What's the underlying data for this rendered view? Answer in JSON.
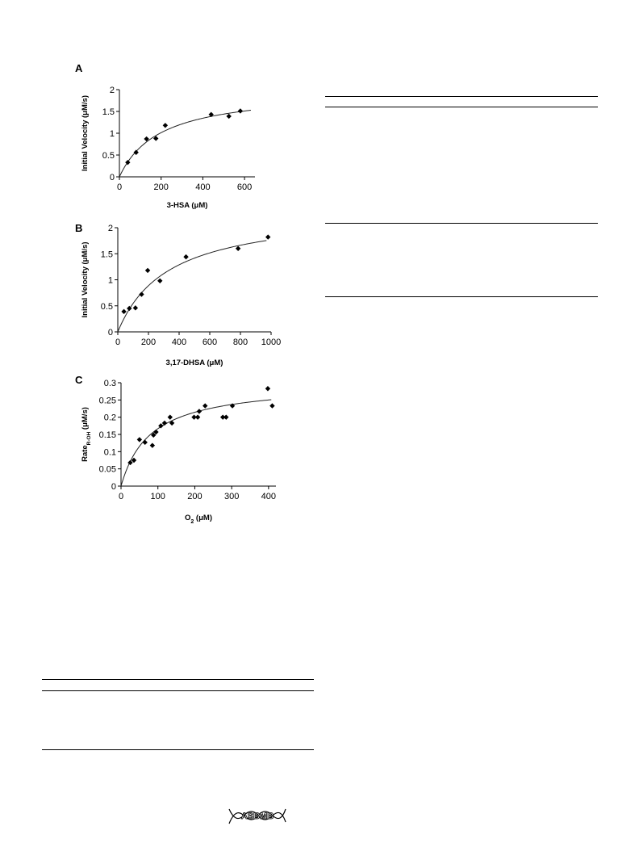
{
  "chart_data": [
    {
      "type": "scatter",
      "panel": "A",
      "xlabel": "3-HSA (μM)",
      "ylabel": "Initial Velocity (μM/s)",
      "xlim": [
        0,
        650
      ],
      "ylim": [
        0,
        2
      ],
      "xticks": [
        0,
        200,
        400,
        600
      ],
      "yticks": [
        0,
        0.5,
        1,
        1.5,
        2
      ],
      "tick_labels_x": [
        "0",
        "200",
        "400",
        "600"
      ],
      "tick_labels_y": [
        "0",
        "0.5",
        "1",
        "1.5",
        "2"
      ],
      "points": [
        [
          40,
          0.33
        ],
        [
          80,
          0.56
        ],
        [
          130,
          0.87
        ],
        [
          175,
          0.88
        ],
        [
          220,
          1.18
        ],
        [
          440,
          1.43
        ],
        [
          525,
          1.39
        ],
        [
          580,
          1.51
        ]
      ],
      "fit": {
        "type": "michaelis-menten",
        "vmax": 2.0,
        "km": 195
      },
      "grid": false,
      "legend": "none"
    },
    {
      "type": "scatter",
      "panel": "B",
      "xlabel": "3,17-DHSA (μM)",
      "ylabel": "Initial Velocity (μM/s)",
      "xlim": [
        0,
        1000
      ],
      "ylim": [
        0,
        2
      ],
      "xticks": [
        0,
        200,
        400,
        600,
        800,
        1000
      ],
      "yticks": [
        0,
        0.5,
        1,
        1.5,
        2
      ],
      "tick_labels_x": [
        "0",
        "200",
        "400",
        "600",
        "800",
        "1000"
      ],
      "tick_labels_y": [
        "0",
        "0.5",
        "1",
        "1.5",
        "2"
      ],
      "points": [
        [
          40,
          0.39
        ],
        [
          75,
          0.45
        ],
        [
          115,
          0.46
        ],
        [
          155,
          0.72
        ],
        [
          195,
          1.18
        ],
        [
          275,
          0.98
        ],
        [
          445,
          1.44
        ],
        [
          785,
          1.6
        ],
        [
          980,
          1.82
        ]
      ],
      "fit": {
        "type": "michaelis-menten",
        "vmax": 2.35,
        "km": 330
      },
      "grid": false,
      "legend": "none"
    },
    {
      "type": "scatter",
      "panel": "C",
      "xlabel": "O2 (μM)",
      "ylabel": "Rate R-OH (μM/s)",
      "xlim": [
        0,
        420
      ],
      "ylim": [
        0,
        0.3
      ],
      "xticks": [
        0,
        100,
        200,
        300,
        400
      ],
      "yticks": [
        0,
        0.05,
        0.1,
        0.15,
        0.2,
        0.25,
        0.3
      ],
      "tick_labels_x": [
        "0",
        "100",
        "200",
        "300",
        "400"
      ],
      "tick_labels_y": [
        "0",
        "0.05",
        "0.1",
        "0.15",
        "0.2",
        "0.25",
        "0.3"
      ],
      "points": [
        [
          25,
          0.068
        ],
        [
          35,
          0.075
        ],
        [
          50,
          0.135
        ],
        [
          65,
          0.127
        ],
        [
          85,
          0.118
        ],
        [
          88,
          0.148
        ],
        [
          95,
          0.157
        ],
        [
          108,
          0.175
        ],
        [
          118,
          0.183
        ],
        [
          133,
          0.2
        ],
        [
          138,
          0.183
        ],
        [
          198,
          0.2
        ],
        [
          208,
          0.2
        ],
        [
          212,
          0.217
        ],
        [
          228,
          0.233
        ],
        [
          276,
          0.2
        ],
        [
          285,
          0.2
        ],
        [
          302,
          0.233
        ],
        [
          398,
          0.283
        ],
        [
          410,
          0.233
        ]
      ],
      "fit": {
        "type": "michaelis-menten",
        "vmax": 0.3,
        "km": 80
      },
      "grid": false,
      "legend": "none"
    }
  ],
  "page": {
    "logo_text": "ASBMB"
  }
}
